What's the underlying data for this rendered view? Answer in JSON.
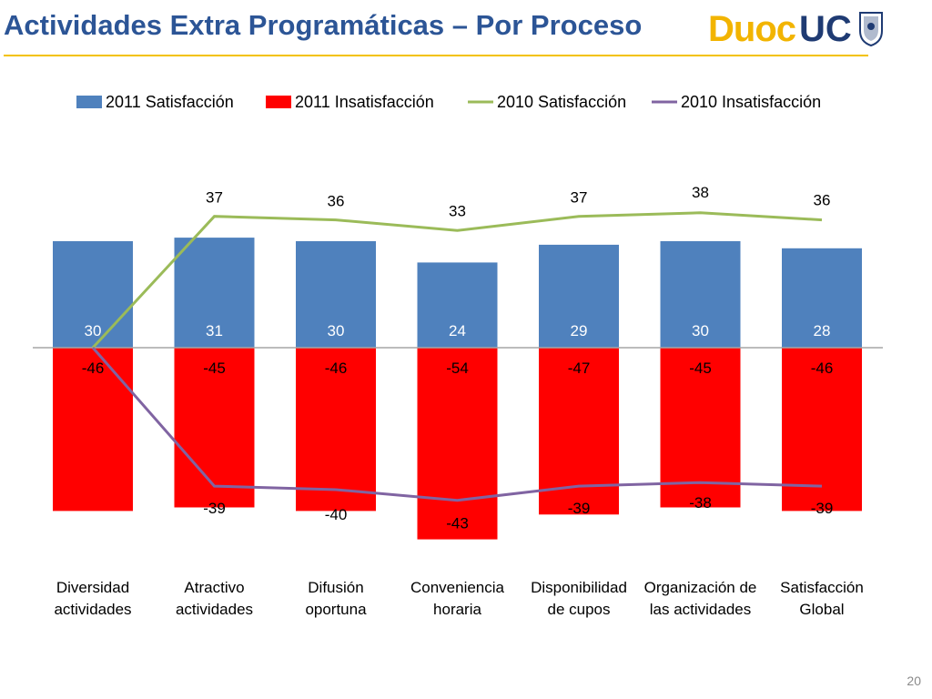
{
  "slide": {
    "title": "Actividades Extra Programáticas – Por Proceso",
    "logo_text_left": "Duoc",
    "logo_text_right": "UC",
    "page_number": "20",
    "colors": {
      "title": "#2c5596",
      "rule": "#f3c200",
      "logo_yellow": "#f2b400",
      "logo_navy": "#1f3b73"
    }
  },
  "chart_data": {
    "type": "bar",
    "categories": [
      [
        "Diversidad",
        "actividades"
      ],
      [
        "Atractivo",
        "actividades"
      ],
      [
        "Difusión",
        "oportuna"
      ],
      [
        "Conveniencia",
        "horaria"
      ],
      [
        "Disponibilidad",
        "de cupos"
      ],
      [
        "Organización de",
        "las actividades"
      ],
      [
        "Satisfacción",
        "Global"
      ]
    ],
    "series": [
      {
        "name": "2011 Satisfacción",
        "kind": "bar",
        "color": "#4f81bd",
        "values": [
          30,
          31,
          30,
          24,
          29,
          30,
          28
        ]
      },
      {
        "name": "2011 Insatisfacción",
        "kind": "bar",
        "color": "#ff0000",
        "values": [
          -46,
          -45,
          -46,
          -54,
          -47,
          -45,
          -46
        ]
      },
      {
        "name": "2010 Satisfacción",
        "kind": "line",
        "color": "#9bbb59",
        "values": [
          0,
          37,
          36,
          33,
          37,
          38,
          36
        ],
        "labels": [
          "",
          "37",
          "36",
          "33",
          "37",
          "38",
          "36"
        ]
      },
      {
        "name": "2010 Insatisfacción",
        "kind": "line",
        "color": "#8064a2",
        "values": [
          0,
          -39,
          -40,
          -43,
          -39,
          -38,
          -39
        ],
        "labels": [
          "",
          "-39",
          "-40",
          "-43",
          "-39",
          "-38",
          "-39"
        ]
      }
    ],
    "ylim": [
      -55,
      45
    ],
    "legend_position": "top",
    "grid": false,
    "title": "",
    "xlabel": "",
    "ylabel": ""
  }
}
